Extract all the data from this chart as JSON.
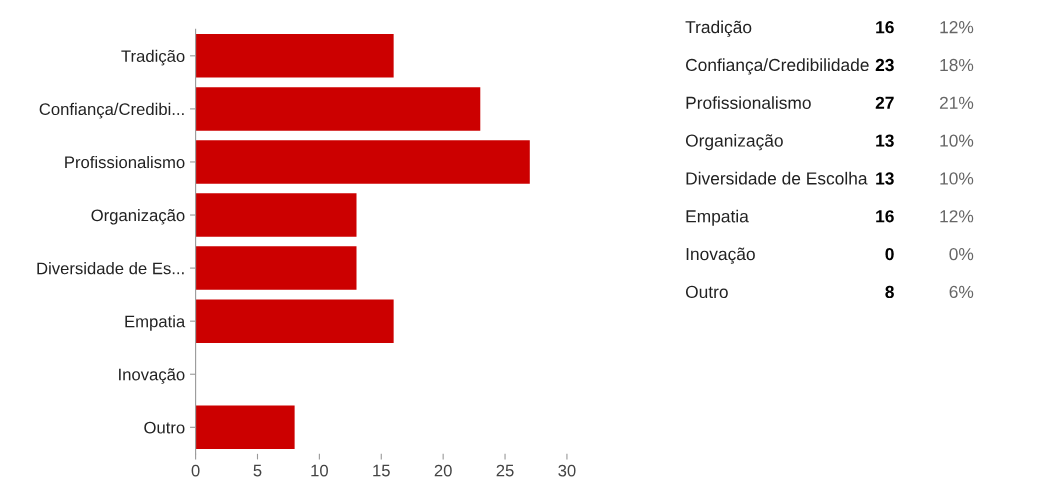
{
  "chart_data": [
    {
      "type": "bar",
      "orientation": "horizontal",
      "categories": [
        "Tradição",
        "Confiança/Credibi...",
        "Profissionalismo",
        "Organização",
        "Diversidade de Es...",
        "Empatia",
        "Inovação",
        "Outro"
      ],
      "values": [
        16,
        23,
        27,
        13,
        13,
        16,
        0,
        8
      ],
      "color": "#cc0000",
      "xlim": [
        0,
        30
      ],
      "xticks": [
        0,
        5,
        10,
        15,
        20,
        25,
        30
      ],
      "grid": false
    },
    {
      "type": "other",
      "categories": [
        "Tradição",
        "Confiança/Credibilidade",
        "Profissionalismo",
        "Organização",
        "Diversidade de Escolha",
        "Empatia",
        "Inovação",
        "Outro"
      ],
      "series": [
        {
          "color": "#000000",
          "values": [
            16,
            23,
            27,
            13,
            13,
            16,
            0,
            8
          ]
        },
        {
          "color": "#666666",
          "values": [
            12,
            18,
            21,
            10,
            10,
            12,
            0,
            6
          ],
          "value_labels": [
            "12%",
            "18%",
            "21%",
            "10%",
            "10%",
            "12%",
            "0%",
            "6%"
          ]
        }
      ],
      "data_labels": true
    }
  ]
}
